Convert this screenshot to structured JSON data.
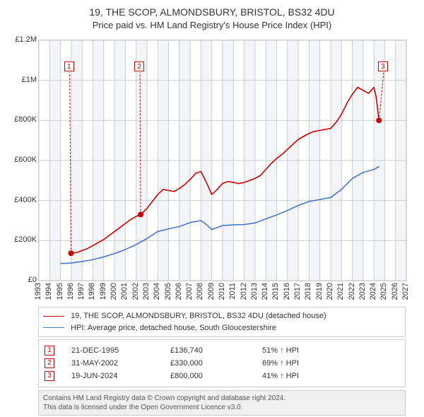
{
  "title": "19, THE SCOP, ALMONDSBURY, BRISTOL, BS32 4DU",
  "subtitle": "Price paid vs. HM Land Registry's House Price Index (HPI)",
  "chart": {
    "type": "line",
    "x_axis": {
      "min": 1993,
      "max": 2027,
      "tick_step": 1
    },
    "y_axis": {
      "min": 0,
      "max": 1200000,
      "ticks": [
        0,
        200000,
        400000,
        600000,
        800000,
        1000000,
        1200000
      ],
      "tick_labels": [
        "£0",
        "£200K",
        "£400K",
        "£600K",
        "£800K",
        "£1M",
        "£1.2M"
      ]
    },
    "background_color": "#ffffff",
    "plot_background_color": "#ffffff",
    "grid_color": "#cccccc",
    "alt_band_color": "#f3f5f8",
    "colors": {
      "series1": "#cc0000",
      "series2": "#4a76c7"
    },
    "line_width": 1.6,
    "series": [
      {
        "name": "price_paid",
        "label": "19, THE SCOP, ALMONDSBURY, BRISTOL, BS32 4DU (detached house)",
        "color": "#cc0000",
        "data": [
          [
            1995.97,
            136740
          ],
          [
            1996.5,
            140000
          ],
          [
            1997,
            150000
          ],
          [
            1997.5,
            160000
          ],
          [
            1998,
            175000
          ],
          [
            1998.5,
            190000
          ],
          [
            1999,
            205000
          ],
          [
            1999.5,
            225000
          ],
          [
            2000,
            245000
          ],
          [
            2000.5,
            265000
          ],
          [
            2001,
            285000
          ],
          [
            2001.5,
            305000
          ],
          [
            2002,
            320000
          ],
          [
            2002.42,
            330000
          ],
          [
            2003,
            360000
          ],
          [
            2003.5,
            395000
          ],
          [
            2004,
            430000
          ],
          [
            2004.5,
            455000
          ],
          [
            2005,
            450000
          ],
          [
            2005.5,
            445000
          ],
          [
            2006,
            460000
          ],
          [
            2006.5,
            480000
          ],
          [
            2007,
            505000
          ],
          [
            2007.5,
            535000
          ],
          [
            2008,
            545000
          ],
          [
            2008.5,
            490000
          ],
          [
            2009,
            430000
          ],
          [
            2009.5,
            455000
          ],
          [
            2010,
            485000
          ],
          [
            2010.5,
            495000
          ],
          [
            2011,
            490000
          ],
          [
            2011.5,
            485000
          ],
          [
            2012,
            490000
          ],
          [
            2012.5,
            500000
          ],
          [
            2013,
            510000
          ],
          [
            2013.5,
            525000
          ],
          [
            2014,
            555000
          ],
          [
            2014.5,
            585000
          ],
          [
            2015,
            610000
          ],
          [
            2015.5,
            630000
          ],
          [
            2016,
            655000
          ],
          [
            2016.5,
            680000
          ],
          [
            2017,
            705000
          ],
          [
            2017.5,
            720000
          ],
          [
            2018,
            735000
          ],
          [
            2018.5,
            745000
          ],
          [
            2019,
            750000
          ],
          [
            2019.5,
            755000
          ],
          [
            2020,
            760000
          ],
          [
            2020.5,
            790000
          ],
          [
            2021,
            830000
          ],
          [
            2021.5,
            885000
          ],
          [
            2022,
            930000
          ],
          [
            2022.5,
            965000
          ],
          [
            2023,
            950000
          ],
          [
            2023.5,
            935000
          ],
          [
            2024,
            965000
          ],
          [
            2024.2,
            920000
          ],
          [
            2024.47,
            800000
          ]
        ]
      },
      {
        "name": "hpi",
        "label": "HPI: Average price, detached house, South Gloucestershire",
        "color": "#4a76c7",
        "data": [
          [
            1995,
            85000
          ],
          [
            1996,
            88000
          ],
          [
            1997,
            95000
          ],
          [
            1998,
            105000
          ],
          [
            1999,
            118000
          ],
          [
            2000,
            135000
          ],
          [
            2001,
            155000
          ],
          [
            2002,
            180000
          ],
          [
            2003,
            210000
          ],
          [
            2004,
            245000
          ],
          [
            2005,
            258000
          ],
          [
            2006,
            270000
          ],
          [
            2007,
            290000
          ],
          [
            2008,
            300000
          ],
          [
            2008.5,
            280000
          ],
          [
            2009,
            255000
          ],
          [
            2010,
            275000
          ],
          [
            2011,
            278000
          ],
          [
            2012,
            280000
          ],
          [
            2013,
            288000
          ],
          [
            2014,
            308000
          ],
          [
            2015,
            328000
          ],
          [
            2016,
            350000
          ],
          [
            2017,
            375000
          ],
          [
            2018,
            395000
          ],
          [
            2019,
            405000
          ],
          [
            2020,
            415000
          ],
          [
            2021,
            455000
          ],
          [
            2022,
            510000
          ],
          [
            2023,
            540000
          ],
          [
            2024,
            555000
          ],
          [
            2024.5,
            570000
          ]
        ]
      }
    ],
    "markers": [
      {
        "n": "1",
        "x": 1995.97,
        "y": 136740,
        "label_x": 1995.4,
        "label_y": 1090000
      },
      {
        "n": "2",
        "x": 2002.42,
        "y": 330000,
        "label_x": 2001.9,
        "label_y": 1090000
      },
      {
        "n": "3",
        "x": 2024.47,
        "y": 800000,
        "label_x": 2024.45,
        "label_y": 1090000
      }
    ],
    "marker_color": "#cc0000",
    "marker_fill": "#cc0000"
  },
  "legend": {
    "items": [
      {
        "color": "#cc0000",
        "label": "19, THE SCOP, ALMONDSBURY, BRISTOL, BS32 4DU (detached house)"
      },
      {
        "color": "#4a76c7",
        "label": "HPI: Average price, detached house, South Gloucestershire"
      }
    ]
  },
  "points_table": {
    "rows": [
      {
        "n": "1",
        "date": "21-DEC-1995",
        "price": "£136,740",
        "pct": "51% ↑ HPI"
      },
      {
        "n": "2",
        "date": "31-MAY-2002",
        "price": "£330,000",
        "pct": "69% ↑ HPI"
      },
      {
        "n": "3",
        "date": "19-JUN-2024",
        "price": "£800,000",
        "pct": "41% ↑ HPI"
      }
    ],
    "marker_color": "#cc0000"
  },
  "footer": {
    "line1": "Contains HM Land Registry data © Crown copyright and database right 2024.",
    "line2": "This data is licensed under the Open Government Licence v3.0."
  }
}
